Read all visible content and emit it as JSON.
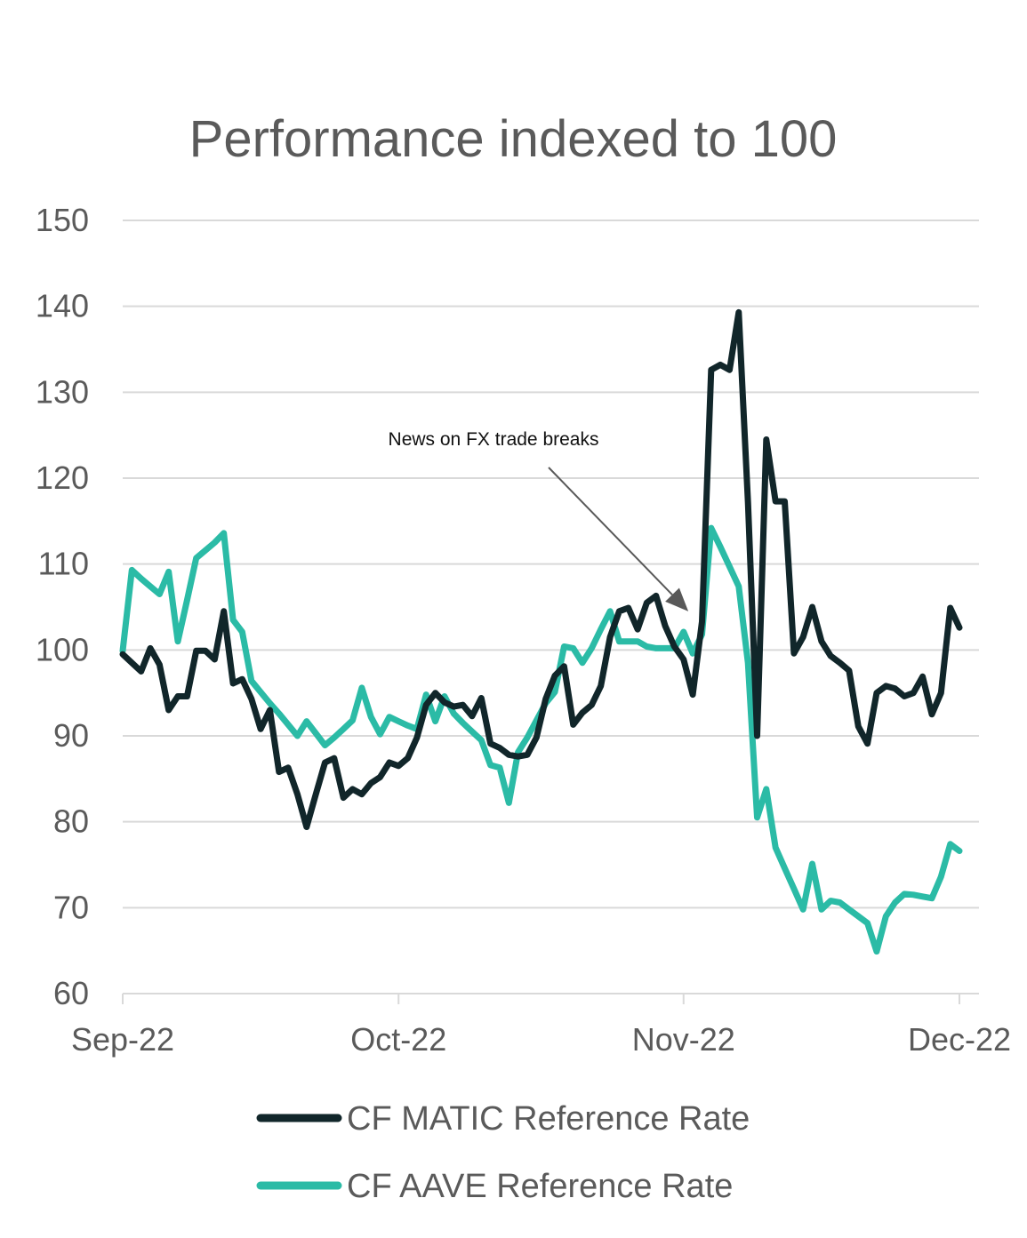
{
  "chart_data": {
    "type": "line",
    "title": "Performance indexed to 100",
    "xlabel": "",
    "ylabel": "",
    "ylim": [
      60,
      150
    ],
    "yticks": [
      60,
      70,
      80,
      90,
      100,
      110,
      120,
      130,
      140,
      150
    ],
    "xlim": [
      "2022-09-01",
      "2022-12-01"
    ],
    "xticks": [
      {
        "date": "2022-09-01",
        "label": "Sep-22"
      },
      {
        "date": "2022-10-01",
        "label": "Oct-22"
      },
      {
        "date": "2022-11-01",
        "label": "Nov-22"
      },
      {
        "date": "2022-12-01",
        "label": "Dec-22"
      }
    ],
    "grid": true,
    "legend_position": "bottom",
    "annotation": {
      "text": "News on FX trade breaks",
      "target_date": "2022-11-02",
      "target_value": 104.5
    },
    "series": [
      {
        "name": "CF MATIC Reference Rate",
        "color": "#11262a",
        "points": [
          [
            "2022-09-01",
            99.5
          ],
          [
            "2022-09-02",
            98.5
          ],
          [
            "2022-09-03",
            97.5
          ],
          [
            "2022-09-04",
            100.2
          ],
          [
            "2022-09-05",
            98.3
          ],
          [
            "2022-09-06",
            93.0
          ],
          [
            "2022-09-07",
            94.6
          ],
          [
            "2022-09-08",
            94.6
          ],
          [
            "2022-09-09",
            99.9
          ],
          [
            "2022-09-10",
            99.9
          ],
          [
            "2022-09-11",
            98.9
          ],
          [
            "2022-09-12",
            104.5
          ],
          [
            "2022-09-13",
            96.1
          ],
          [
            "2022-09-14",
            96.6
          ],
          [
            "2022-09-15",
            94.3
          ],
          [
            "2022-09-16",
            90.8
          ],
          [
            "2022-09-17",
            93.0
          ],
          [
            "2022-09-18",
            85.8
          ],
          [
            "2022-09-19",
            86.3
          ],
          [
            "2022-09-20",
            83.2
          ],
          [
            "2022-09-21",
            79.4
          ],
          [
            "2022-09-22",
            83.2
          ],
          [
            "2022-09-23",
            86.9
          ],
          [
            "2022-09-24",
            87.4
          ],
          [
            "2022-09-25",
            82.8
          ],
          [
            "2022-09-26",
            83.8
          ],
          [
            "2022-09-27",
            83.2
          ],
          [
            "2022-09-28",
            84.5
          ],
          [
            "2022-09-29",
            85.2
          ],
          [
            "2022-09-30",
            86.9
          ],
          [
            "2022-10-01",
            86.5
          ],
          [
            "2022-10-02",
            87.4
          ],
          [
            "2022-10-03",
            89.8
          ],
          [
            "2022-10-04",
            93.6
          ],
          [
            "2022-10-05",
            95.0
          ],
          [
            "2022-10-06",
            93.9
          ],
          [
            "2022-10-07",
            93.4
          ],
          [
            "2022-10-08",
            93.6
          ],
          [
            "2022-10-09",
            92.3
          ],
          [
            "2022-10-10",
            94.4
          ],
          [
            "2022-10-11",
            89.1
          ],
          [
            "2022-10-12",
            88.6
          ],
          [
            "2022-10-13",
            87.8
          ],
          [
            "2022-10-14",
            87.6
          ],
          [
            "2022-10-15",
            87.8
          ],
          [
            "2022-10-16",
            89.8
          ],
          [
            "2022-10-17",
            94.3
          ],
          [
            "2022-10-18",
            97.0
          ],
          [
            "2022-10-19",
            98.1
          ],
          [
            "2022-10-20",
            91.3
          ],
          [
            "2022-10-21",
            92.7
          ],
          [
            "2022-10-22",
            93.6
          ],
          [
            "2022-10-23",
            95.8
          ],
          [
            "2022-10-24",
            101.5
          ],
          [
            "2022-10-25",
            104.5
          ],
          [
            "2022-10-26",
            104.9
          ],
          [
            "2022-10-27",
            102.4
          ],
          [
            "2022-10-28",
            105.5
          ],
          [
            "2022-10-29",
            106.3
          ],
          [
            "2022-10-30",
            102.8
          ],
          [
            "2022-10-31",
            100.4
          ],
          [
            "2022-11-01",
            98.9
          ],
          [
            "2022-11-02",
            94.8
          ],
          [
            "2022-11-03",
            103.3
          ],
          [
            "2022-11-04",
            132.6
          ],
          [
            "2022-11-05",
            133.2
          ],
          [
            "2022-11-06",
            132.6
          ],
          [
            "2022-11-07",
            139.3
          ],
          [
            "2022-11-08",
            117.2
          ],
          [
            "2022-11-09",
            90.0
          ],
          [
            "2022-11-10",
            124.5
          ],
          [
            "2022-11-11",
            117.3
          ],
          [
            "2022-11-12",
            117.3
          ],
          [
            "2022-11-13",
            99.6
          ],
          [
            "2022-11-14",
            101.5
          ],
          [
            "2022-11-15",
            105.0
          ],
          [
            "2022-11-16",
            101.0
          ],
          [
            "2022-11-17",
            99.3
          ],
          [
            "2022-11-18",
            98.5
          ],
          [
            "2022-11-19",
            97.6
          ],
          [
            "2022-11-20",
            91.1
          ],
          [
            "2022-11-21",
            89.1
          ],
          [
            "2022-11-22",
            95.0
          ],
          [
            "2022-11-23",
            95.8
          ],
          [
            "2022-11-24",
            95.5
          ],
          [
            "2022-11-25",
            94.6
          ],
          [
            "2022-11-26",
            95.0
          ],
          [
            "2022-11-27",
            96.9
          ],
          [
            "2022-11-28",
            92.5
          ],
          [
            "2022-11-29",
            95.0
          ],
          [
            "2022-11-30",
            104.9
          ],
          [
            "2022-12-01",
            102.6
          ]
        ]
      },
      {
        "name": "CF AAVE Reference Rate",
        "color": "#2bbba6",
        "points": [
          [
            "2022-09-01",
            99.9
          ],
          [
            "2022-09-02",
            109.3
          ],
          [
            "2022-09-03",
            108.3
          ],
          [
            "2022-09-04",
            107.4
          ],
          [
            "2022-09-05",
            106.5
          ],
          [
            "2022-09-06",
            109.1
          ],
          [
            "2022-09-07",
            101.0
          ],
          [
            "2022-09-08",
            105.8
          ],
          [
            "2022-09-09",
            110.7
          ],
          [
            "2022-09-10",
            111.6
          ],
          [
            "2022-09-11",
            112.5
          ],
          [
            "2022-09-12",
            113.6
          ],
          [
            "2022-09-13",
            103.5
          ],
          [
            "2022-09-14",
            102.1
          ],
          [
            "2022-09-15",
            96.4
          ],
          [
            "2022-09-16",
            95.1
          ],
          [
            "2022-09-17",
            93.8
          ],
          [
            "2022-09-18",
            92.6
          ],
          [
            "2022-09-19",
            91.3
          ],
          [
            "2022-09-20",
            90.0
          ],
          [
            "2022-09-21",
            91.7
          ],
          [
            "2022-09-22",
            90.3
          ],
          [
            "2022-09-23",
            88.9
          ],
          [
            "2022-09-24",
            89.8
          ],
          [
            "2022-09-25",
            90.8
          ],
          [
            "2022-09-26",
            91.8
          ],
          [
            "2022-09-27",
            95.6
          ],
          [
            "2022-09-28",
            92.2
          ],
          [
            "2022-09-29",
            90.2
          ],
          [
            "2022-09-30",
            92.2
          ],
          [
            "2022-10-01",
            91.7
          ],
          [
            "2022-10-02",
            91.2
          ],
          [
            "2022-10-03",
            90.8
          ],
          [
            "2022-10-04",
            94.8
          ],
          [
            "2022-10-05",
            91.7
          ],
          [
            "2022-10-06",
            94.6
          ],
          [
            "2022-10-07",
            92.6
          ],
          [
            "2022-10-08",
            91.5
          ],
          [
            "2022-10-09",
            90.5
          ],
          [
            "2022-10-10",
            89.5
          ],
          [
            "2022-10-11",
            86.6
          ],
          [
            "2022-10-12",
            86.3
          ],
          [
            "2022-10-13",
            82.2
          ],
          [
            "2022-10-14",
            88.1
          ],
          [
            "2022-10-15",
            89.8
          ],
          [
            "2022-10-16",
            91.8
          ],
          [
            "2022-10-17",
            93.8
          ],
          [
            "2022-10-18",
            95.1
          ],
          [
            "2022-10-19",
            100.4
          ],
          [
            "2022-10-20",
            100.2
          ],
          [
            "2022-10-21",
            98.5
          ],
          [
            "2022-10-22",
            100.2
          ],
          [
            "2022-10-23",
            102.4
          ],
          [
            "2022-10-24",
            104.5
          ],
          [
            "2022-10-25",
            101.0
          ],
          [
            "2022-10-26",
            101.0
          ],
          [
            "2022-10-27",
            101.0
          ],
          [
            "2022-10-28",
            100.4
          ],
          [
            "2022-10-29",
            100.2
          ],
          [
            "2022-10-30",
            100.2
          ],
          [
            "2022-10-31",
            100.2
          ],
          [
            "2022-11-01",
            102.1
          ],
          [
            "2022-11-02",
            99.6
          ],
          [
            "2022-11-03",
            101.8
          ],
          [
            "2022-11-04",
            114.2
          ],
          [
            "2022-11-05",
            112.0
          ],
          [
            "2022-11-06",
            109.7
          ],
          [
            "2022-11-07",
            107.4
          ],
          [
            "2022-11-08",
            98.5
          ],
          [
            "2022-11-09",
            80.5
          ],
          [
            "2022-11-10",
            83.8
          ],
          [
            "2022-11-11",
            77.0
          ],
          [
            "2022-11-12",
            74.6
          ],
          [
            "2022-11-13",
            72.2
          ],
          [
            "2022-11-14",
            69.8
          ],
          [
            "2022-11-15",
            75.1
          ],
          [
            "2022-11-16",
            69.8
          ],
          [
            "2022-11-17",
            70.8
          ],
          [
            "2022-11-18",
            70.6
          ],
          [
            "2022-11-19",
            69.8
          ],
          [
            "2022-11-20",
            69.0
          ],
          [
            "2022-11-21",
            68.2
          ],
          [
            "2022-11-22",
            64.9
          ],
          [
            "2022-11-23",
            69.0
          ],
          [
            "2022-11-24",
            70.6
          ],
          [
            "2022-11-25",
            71.6
          ],
          [
            "2022-11-26",
            71.5
          ],
          [
            "2022-11-27",
            71.3
          ],
          [
            "2022-11-28",
            71.1
          ],
          [
            "2022-11-29",
            73.6
          ],
          [
            "2022-11-30",
            77.4
          ],
          [
            "2022-12-01",
            76.6
          ]
        ]
      }
    ]
  }
}
